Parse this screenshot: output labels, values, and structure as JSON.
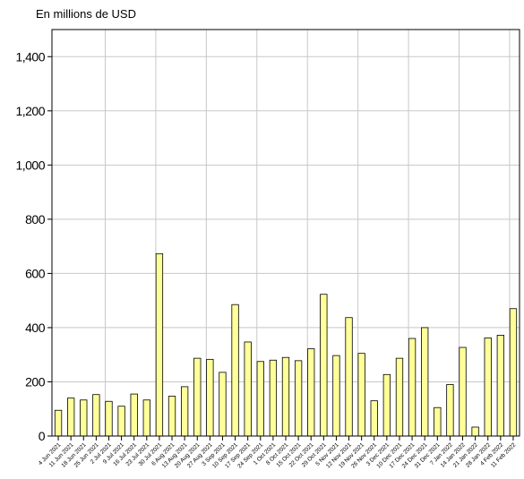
{
  "chart_data": {
    "type": "bar",
    "ylabel": "En millions de USD",
    "ylim": [
      0,
      1500
    ],
    "yticks": [
      0,
      200,
      400,
      600,
      800,
      1000,
      1200,
      1400
    ],
    "ytick_labels": [
      "0",
      "200",
      "400",
      "600",
      "800",
      "1,000",
      "1,200",
      "1,400"
    ],
    "grid": true,
    "bar_color": "#ffff99",
    "bar_edge_color": "#000000",
    "grid_color": "#c8c8c8",
    "categories": [
      "4 Jun 2021",
      "11 Jun 2021",
      "18 Jun 2021",
      "25 Jun 2021",
      "2 Jul 2021",
      "9 Jul 2021",
      "16 Jul 2021",
      "23 Jul 2021",
      "30 Jul 2021",
      "6 Aug 2021",
      "13 Aug 2021",
      "20 Aug 2021",
      "27 Aug 2021",
      "3 Sep 2021",
      "10 Sep 2021",
      "17 Sep 2021",
      "24 Sep 2021",
      "1 Oct 2021",
      "8 Oct 2021",
      "15 Oct 2021",
      "22 Oct 2021",
      "29 Oct 2021",
      "5 Nov 2021",
      "12 Nov 2021",
      "19 Nov 2021",
      "26 Nov 2021",
      "3 Dec 2021",
      "10 Dec 2021",
      "17 Dec 2021",
      "24 Dec 2021",
      "31 Dec 2021",
      "7 Jan 2022",
      "14 Jan 2022",
      "21 Jan 2022",
      "28 Jan 2022",
      "4 Feb 2022",
      "11 Feb 2022"
    ],
    "values": [
      95,
      140,
      133,
      153,
      128,
      110,
      155,
      133,
      673,
      147,
      182,
      287,
      283,
      235,
      485,
      347,
      275,
      280,
      290,
      278,
      322,
      523,
      297,
      437,
      305,
      130,
      227,
      287,
      360,
      400,
      105,
      190,
      327,
      33,
      362,
      372,
      470
    ]
  }
}
